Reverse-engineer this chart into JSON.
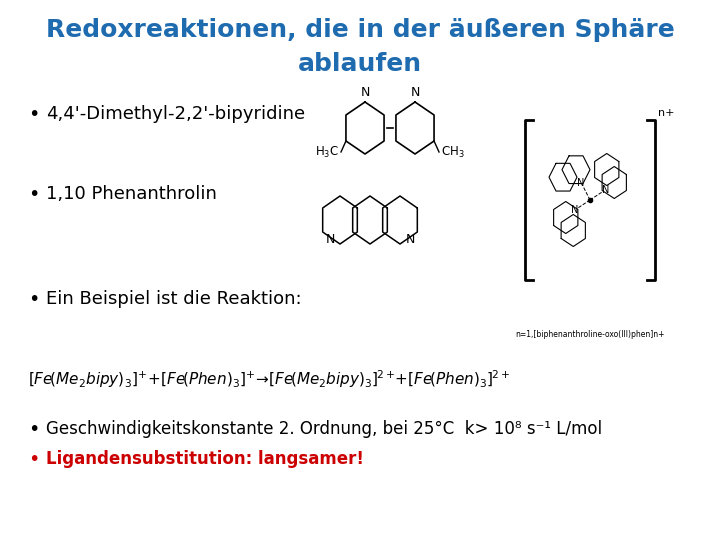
{
  "title_line1": "Redoxreaktionen, die in der äußeren Sphäre",
  "title_line2": "ablaufen",
  "title_color": "#1F6BB0",
  "background_color": "#FFFFFF",
  "bullet1": "4,4'-Dimethyl-2,2'-bipyridine",
  "bullet2": "1,10 Phenanthrolin",
  "bullet3": "Ein Beispiel ist die Reaktion:",
  "note1": "Geschwindigkeitskonstante 2. Ordnung, bei 25°C  k> 10⁸ s⁻¹ L/mol",
  "note2": "Ligandensubstitution: langsamer!",
  "note2_color": "#CC0000",
  "bullet_color": "#000000",
  "title_fontsize": 18,
  "bullet_fontsize": 13,
  "eq_fontsize": 11,
  "note_fontsize": 12
}
